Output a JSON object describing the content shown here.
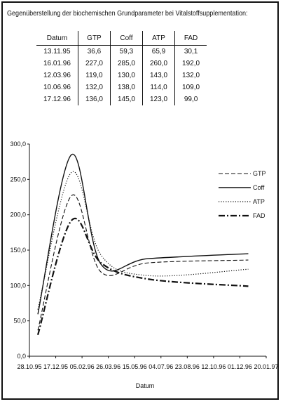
{
  "title": "Gegenüberstellung der biochemischen Grundparameter  bei Vitalstoffsupplementation:",
  "table": {
    "headers": [
      "Datum",
      "GTP",
      "Coff",
      "ATP",
      "FAD"
    ],
    "rows": [
      [
        "13.11.95",
        "36,6",
        "59,3",
        "65,9",
        "30,1"
      ],
      [
        "16.01.96",
        "227,0",
        "285,0",
        "260,0",
        "192,0"
      ],
      [
        "12.03.96",
        "119,0",
        "130,0",
        "143,0",
        "132,0"
      ],
      [
        "10.06.96",
        "132,0",
        "138,0",
        "114,0",
        "109,0"
      ],
      [
        "17.12.96",
        "136,0",
        "145,0",
        "123,0",
        "99,0"
      ]
    ]
  },
  "chart_data": {
    "type": "line",
    "title": "",
    "xlabel": "Datum",
    "ylabel": "",
    "ylim": [
      0,
      300
    ],
    "yticks": [
      "0,0",
      "50,0",
      "100,0",
      "150,0",
      "200,0",
      "250,0",
      "300,0"
    ],
    "xticks": [
      "28.10.95",
      "17.12.95",
      "05.02.96",
      "26.03.96",
      "15.05.96",
      "04.07.96",
      "23.08.96",
      "12.10.96",
      "01.12.96",
      "20.01.97"
    ],
    "x": [
      "13.11.95",
      "16.01.96",
      "12.03.96",
      "10.06.96",
      "17.12.96"
    ],
    "series": [
      {
        "name": "GTP",
        "style": "dashed",
        "values": [
          36.6,
          227.0,
          119.0,
          132.0,
          136.0
        ]
      },
      {
        "name": "Coff",
        "style": "solid",
        "values": [
          59.3,
          285.0,
          130.0,
          138.0,
          145.0
        ]
      },
      {
        "name": "ATP",
        "style": "dotted",
        "values": [
          65.9,
          260.0,
          143.0,
          114.0,
          123.0
        ]
      },
      {
        "name": "FAD",
        "style": "dash-dot",
        "values": [
          30.1,
          192.0,
          132.0,
          109.0,
          99.0
        ]
      }
    ],
    "legend_position": "right",
    "grid": false
  }
}
